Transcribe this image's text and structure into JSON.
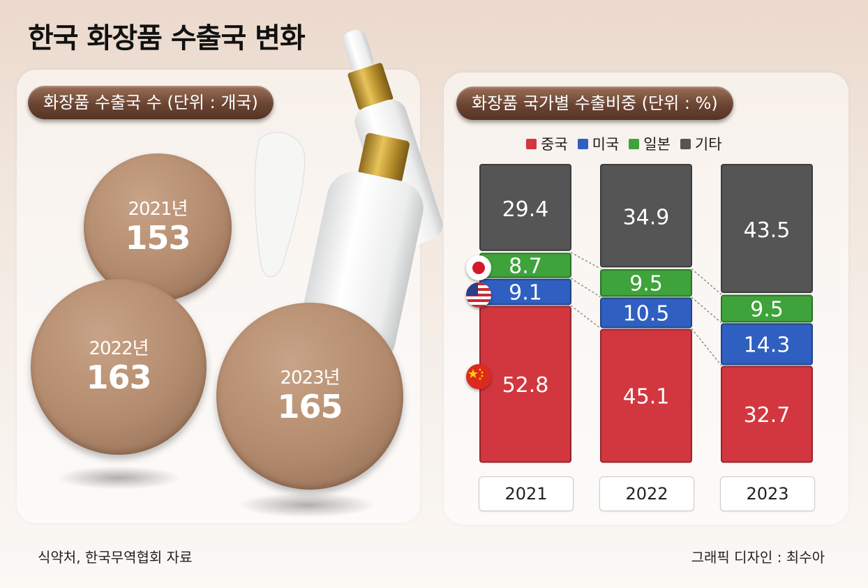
{
  "title": "한국 화장품 수출국 변화",
  "left_panel": {
    "label": "화장품 수출국 수 (단위 : 개국)",
    "bubbles": [
      {
        "year": "2021년",
        "value": "153"
      },
      {
        "year": "2022년",
        "value": "163"
      },
      {
        "year": "2023년",
        "value": "165"
      }
    ]
  },
  "right_panel": {
    "label": "화장품 국가별 수출비중 (단위 : %)"
  },
  "chart_data": {
    "type": "bar",
    "stacked": true,
    "categories": [
      "2021",
      "2022",
      "2023"
    ],
    "series": [
      {
        "name": "중국",
        "color": "#d2363f",
        "values": [
          52.8,
          45.1,
          32.7
        ]
      },
      {
        "name": "미국",
        "color": "#2f5fc0",
        "values": [
          9.1,
          10.5,
          14.3
        ]
      },
      {
        "name": "일본",
        "color": "#3ea33a",
        "values": [
          8.7,
          9.5,
          9.5
        ]
      },
      {
        "name": "기타",
        "color": "#555555",
        "values": [
          29.4,
          34.9,
          43.5
        ]
      }
    ],
    "ylim": [
      0,
      100
    ],
    "legend": "top"
  },
  "legend": [
    {
      "label": "중국",
      "color": "#d2363f"
    },
    {
      "label": "미국",
      "color": "#2f5fc0"
    },
    {
      "label": "일본",
      "color": "#3ea33a"
    },
    {
      "label": "기타",
      "color": "#555555"
    }
  ],
  "source": "식약처, 한국무역협회 자료",
  "credit": "그래픽 디자인 : 최수아"
}
